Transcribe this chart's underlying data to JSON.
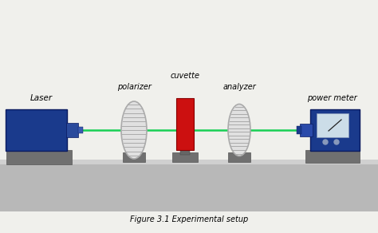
{
  "bg_color": "#f0f0ec",
  "title": "Figure 3.1 Experimental setup",
  "labels": {
    "laser": "Laser",
    "polarizer": "polarizer",
    "cuvette": "cuvette",
    "analyzer": "analyzer",
    "power_meter": "power meter"
  },
  "bench_color": "#b8b8b8",
  "bench_top_color": "#c8c8c8",
  "laser_color": "#1a3a8c",
  "cuvette_color": "#cc1010",
  "power_meter_color": "#1a3a8c",
  "stand_dark": "#707070",
  "stand_light": "#909090",
  "lens_fill": "#e0e0e0",
  "lens_edge": "#aaaaaa",
  "beam_color": "#00cc44",
  "screen_fill": "#ccdde8"
}
